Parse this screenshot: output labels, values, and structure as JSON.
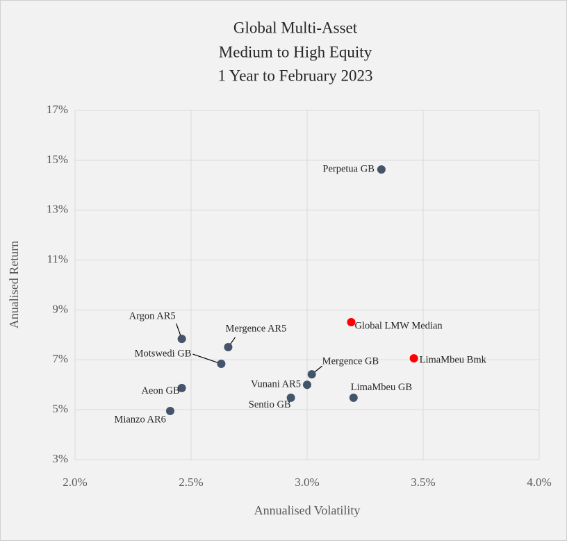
{
  "chart_data": {
    "type": "scatter",
    "title": [
      "Global Multi-Asset",
      "Medium to High Equity",
      "1 Year to February 2023"
    ],
    "x_label": "Annualised Volatility",
    "y_label": "Anualised Return",
    "xlim": [
      2,
      4
    ],
    "xticks": [
      {
        "value": 2,
        "label": "2.0%"
      },
      {
        "value": 2.5,
        "label": "2.5%"
      },
      {
        "value": 3,
        "label": "3.0%"
      },
      {
        "value": 3.5,
        "label": "3.5%"
      },
      {
        "value": 4,
        "label": "4.0%"
      }
    ],
    "ylim": [
      3,
      17
    ],
    "yticks": [
      {
        "value": 3,
        "label": "3%"
      },
      {
        "value": 5,
        "label": "5%"
      },
      {
        "value": 7,
        "label": "7%"
      },
      {
        "value": 9,
        "label": "9%"
      },
      {
        "value": 11,
        "label": "11%"
      },
      {
        "value": 13,
        "label": "13%"
      },
      {
        "value": 15,
        "label": "15%"
      },
      {
        "value": 17,
        "label": "17%"
      }
    ],
    "grid": true,
    "points": [
      {
        "label": "Perpetua GB",
        "x": 3.32,
        "y": 14.63,
        "color": "#44546a"
      },
      {
        "label": "Global LMW Median",
        "x": 3.19,
        "y": 8.51,
        "color": "#ff0000"
      },
      {
        "label": "LimaMbeu Bmk",
        "x": 3.46,
        "y": 7.06,
        "color": "#ff0000"
      },
      {
        "label": "Argon AR5",
        "x": 2.46,
        "y": 7.84,
        "color": "#44546a"
      },
      {
        "label": "Mergence AR5",
        "x": 2.66,
        "y": 7.51,
        "color": "#44546a"
      },
      {
        "label": "Motswedi GB",
        "x": 2.63,
        "y": 6.84,
        "color": "#44546a"
      },
      {
        "label": "Mergence GB",
        "x": 3.02,
        "y": 6.42,
        "color": "#44546a"
      },
      {
        "label": "Vunani AR5",
        "x": 3.0,
        "y": 6.0,
        "color": "#44546a"
      },
      {
        "label": "Sentio GB",
        "x": 2.93,
        "y": 5.48,
        "color": "#44546a"
      },
      {
        "label": "LimaMbeu GB",
        "x": 3.2,
        "y": 5.48,
        "color": "#44546a"
      },
      {
        "label": "Aeon GB",
        "x": 2.46,
        "y": 5.87,
        "color": "#44546a"
      },
      {
        "label": "Mianzo AR6",
        "x": 2.41,
        "y": 4.95,
        "color": "#44546a"
      }
    ]
  }
}
